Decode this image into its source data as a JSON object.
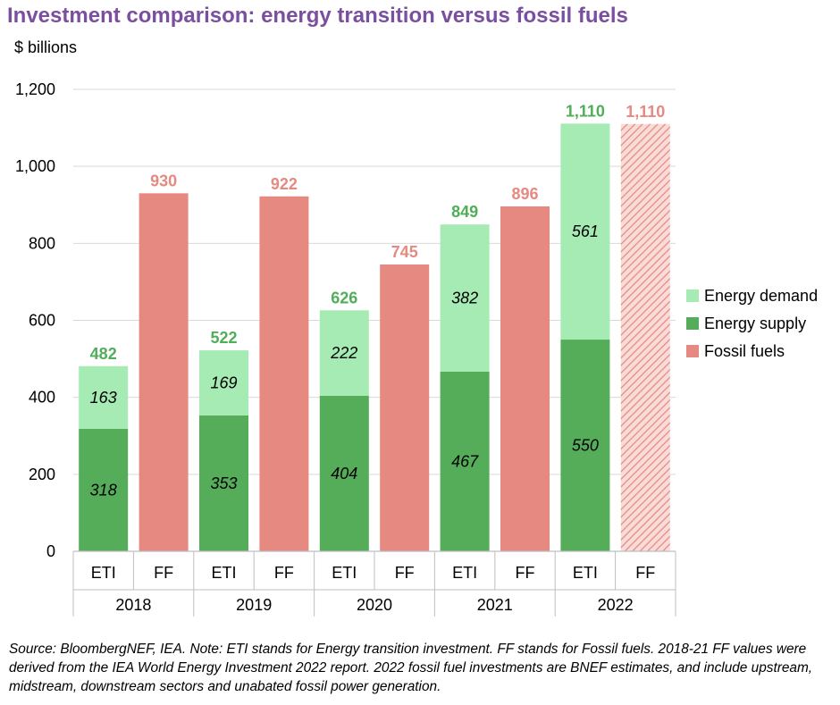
{
  "chart_data": {
    "type": "bar",
    "title": "Investment comparison: energy transition versus fossil fuels",
    "ylabel": "$ billions",
    "ylim": [
      0,
      1200
    ],
    "yticks": [
      0,
      200,
      400,
      600,
      800,
      1000,
      1200
    ],
    "ytick_labels": [
      "0",
      "200",
      "400",
      "600",
      "800",
      "1,000",
      "1,200"
    ],
    "grid": true,
    "legend_position": "right",
    "years": [
      "2018",
      "2019",
      "2020",
      "2021",
      "2022"
    ],
    "bar_labels": [
      "ETI",
      "FF"
    ],
    "series": [
      {
        "name": "Energy supply",
        "color": "#55ad5a",
        "values": [
          318,
          353,
          404,
          467,
          550
        ],
        "labels": [
          "318",
          "353",
          "404",
          "467",
          "550"
        ]
      },
      {
        "name": "Energy demand",
        "color": "#a6eab4",
        "values": [
          163,
          169,
          222,
          382,
          561
        ],
        "labels": [
          "163",
          "169",
          "222",
          "382",
          "561"
        ]
      },
      {
        "name": "Fossil fuels",
        "color": "#e58981",
        "values": [
          930,
          922,
          745,
          896,
          1110
        ],
        "labels": [
          "930",
          "922",
          "745",
          "896",
          "1,110"
        ],
        "estimated": [
          false,
          false,
          false,
          false,
          true
        ]
      }
    ],
    "eti_totals": [
      "482",
      "522",
      "626",
      "849",
      "1,110"
    ],
    "legend": [
      "Energy demand",
      "Energy supply",
      "Fossil fuels"
    ],
    "colors": {
      "eti_total_label": "#4fae58",
      "ff_total_label": "#e58981"
    }
  },
  "source_note": "Source: BloombergNEF, IEA. Note: ETI stands for Energy transition investment. FF stands for Fossil fuels. 2018-21 FF values were derived from the IEA World Energy Investment 2022 report. 2022 fossil fuel investments are BNEF estimates, and include upstream, midstream, downstream sectors and unabated fossil power generation."
}
